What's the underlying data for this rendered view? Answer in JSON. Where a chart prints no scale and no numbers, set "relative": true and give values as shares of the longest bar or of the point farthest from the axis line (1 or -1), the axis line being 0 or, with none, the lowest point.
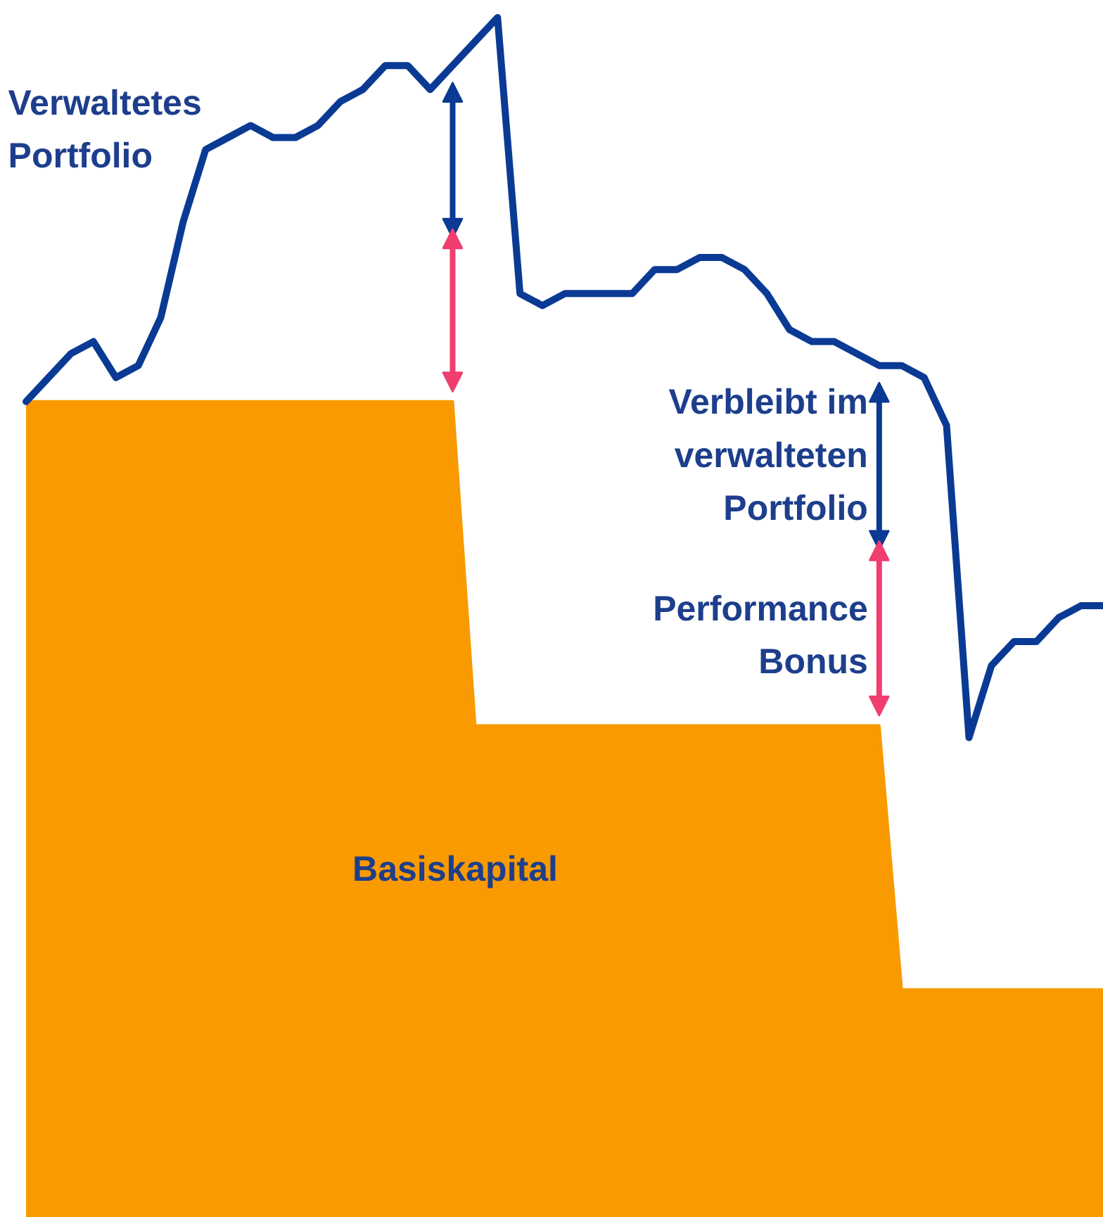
{
  "chart_data": {
    "type": "line",
    "relative": true,
    "categories": [
      null,
      null,
      null,
      null,
      null,
      null,
      null,
      null,
      null,
      null,
      null,
      null,
      null,
      null,
      null,
      null,
      null,
      null,
      null,
      null,
      null,
      null,
      null,
      null,
      null,
      null,
      null,
      null,
      null,
      null,
      null,
      null,
      null,
      null,
      null,
      null,
      null,
      null,
      null,
      null,
      null,
      null,
      null,
      null,
      null,
      null,
      null,
      null,
      null
    ],
    "series": [
      {
        "name": "Basiskapital",
        "type": "area",
        "color": "#f99a00",
        "values": [
          0.68,
          0.68,
          0.68,
          0.68,
          0.68,
          0.68,
          0.68,
          0.68,
          0.68,
          0.68,
          0.68,
          0.68,
          0.68,
          0.68,
          0.68,
          0.68,
          0.68,
          0.68,
          0.68,
          0.68,
          0.41,
          0.41,
          0.41,
          0.41,
          0.41,
          0.41,
          0.41,
          0.41,
          0.41,
          0.41,
          0.41,
          0.41,
          0.41,
          0.41,
          0.41,
          0.41,
          0.41,
          0.41,
          0.41,
          0.19,
          0.19,
          0.19,
          0.19,
          0.19,
          0.19,
          0.19,
          0.19,
          0.19,
          0.19
        ]
      },
      {
        "name": "Verwaltetes\nPortfolio",
        "color": "#0a3a94",
        "values": [
          0.68,
          0.7,
          0.72,
          0.73,
          0.7,
          0.71,
          0.75,
          0.83,
          0.89,
          0.9,
          0.91,
          0.9,
          0.9,
          0.91,
          0.93,
          0.94,
          0.96,
          0.96,
          0.94,
          0.96,
          0.98,
          1.0,
          0.77,
          0.76,
          0.77,
          0.77,
          0.77,
          0.77,
          0.79,
          0.79,
          0.8,
          0.8,
          0.79,
          0.77,
          0.74,
          0.73,
          0.73,
          0.72,
          0.71,
          0.71,
          0.7,
          0.66,
          0.4,
          0.46,
          0.48,
          0.48,
          0.5,
          0.51,
          0.51
        ]
      }
    ],
    "annotations": [
      "Verbleibt im\nverwalteten\nPortfolio",
      "Performance\nBonus"
    ]
  }
}
